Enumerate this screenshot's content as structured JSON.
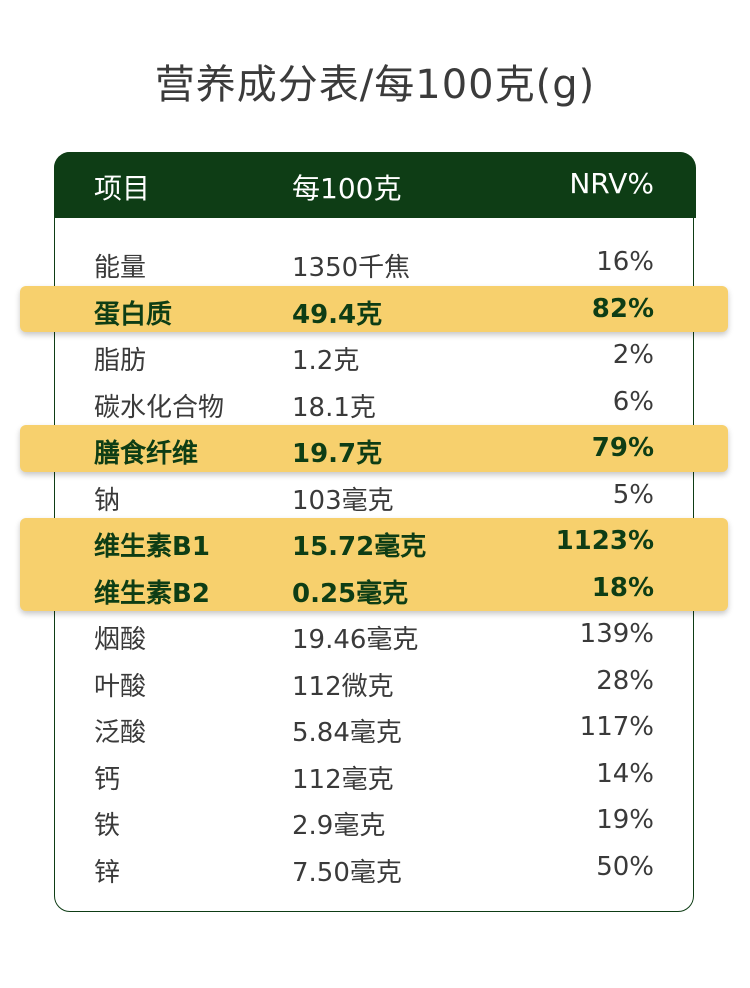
{
  "title": "营养成分表/每100克(g)",
  "table": {
    "headers": [
      "项目",
      "每100克",
      "NRV%"
    ],
    "rows": [
      {
        "item": "能量",
        "amount": "1350千焦",
        "nrv": "16%",
        "highlight": false
      },
      {
        "item": "蛋白质",
        "amount": "49.4克",
        "nrv": "82%",
        "highlight": true
      },
      {
        "item": "脂肪",
        "amount": "1.2克",
        "nrv": "2%",
        "highlight": false
      },
      {
        "item": "碳水化合物",
        "amount": "18.1克",
        "nrv": "6%",
        "highlight": false
      },
      {
        "item": "膳食纤维",
        "amount": "19.7克",
        "nrv": "79%",
        "highlight": true
      },
      {
        "item": "钠",
        "amount": "103毫克",
        "nrv": "5%",
        "highlight": false
      },
      {
        "item": "维生素B1",
        "amount": "15.72毫克",
        "nrv": "1123%",
        "highlight": true
      },
      {
        "item": "维生素B2",
        "amount": "0.25毫克",
        "nrv": "18%",
        "highlight": true
      },
      {
        "item": "烟酸",
        "amount": "19.46毫克",
        "nrv": "139%",
        "highlight": false
      },
      {
        "item": "叶酸",
        "amount": "112微克",
        "nrv": "28%",
        "highlight": false
      },
      {
        "item": "泛酸",
        "amount": "5.84毫克",
        "nrv": "117%",
        "highlight": false
      },
      {
        "item": "钙",
        "amount": "112毫克",
        "nrv": "14%",
        "highlight": false
      },
      {
        "item": "铁",
        "amount": "2.9毫克",
        "nrv": "19%",
        "highlight": false
      },
      {
        "item": "锌",
        "amount": "7.50毫克",
        "nrv": "50%",
        "highlight": false
      }
    ]
  },
  "colors": {
    "header_bg": "#0e3d15",
    "highlight_bg": "#f7d06d",
    "text": "#3a3a3a"
  }
}
